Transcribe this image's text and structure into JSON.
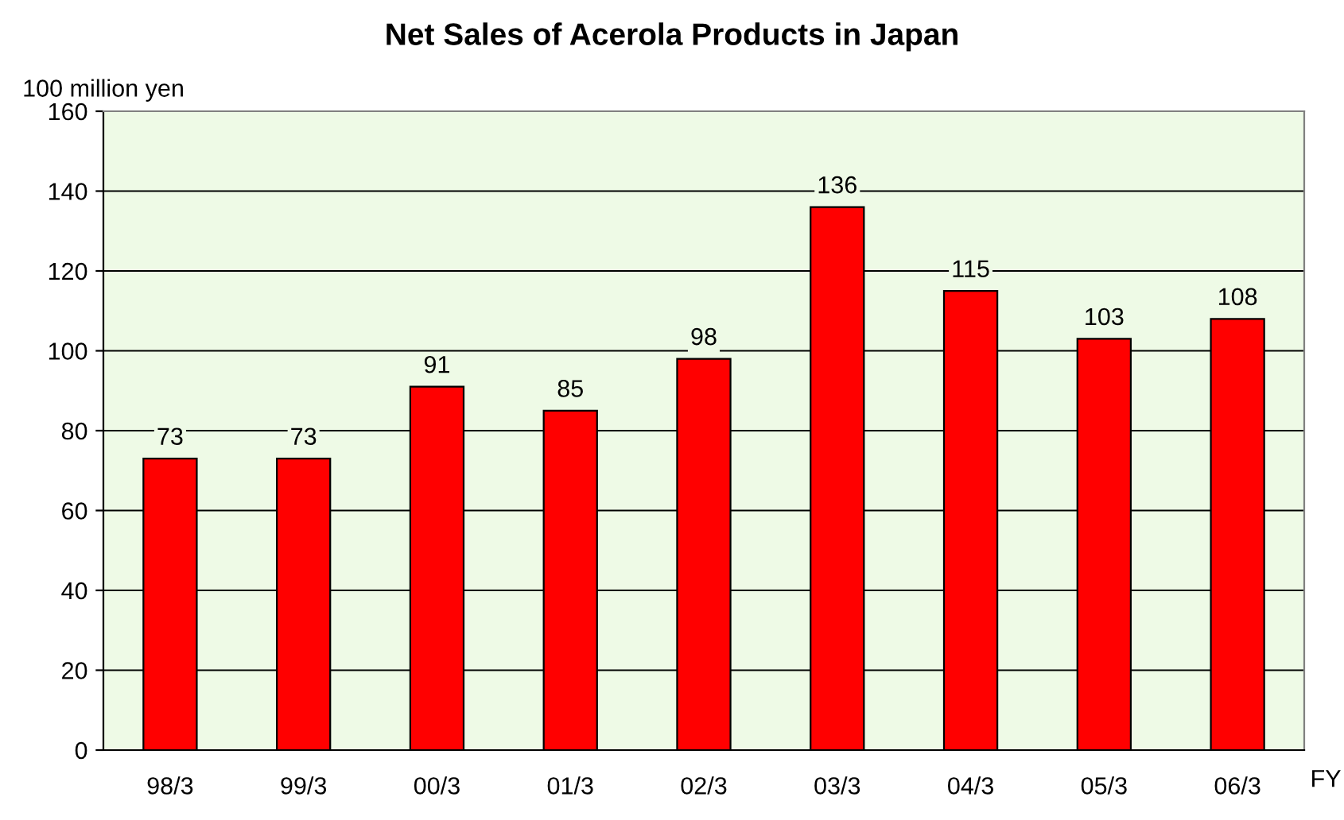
{
  "chart_data": {
    "type": "bar",
    "title": "Net Sales of Acerola Products in Japan",
    "ylabel": "100 million yen",
    "xlabel": "FY",
    "categories": [
      "98/3",
      "99/3",
      "00/3",
      "01/3",
      "02/3",
      "03/3",
      "04/3",
      "05/3",
      "06/3"
    ],
    "values": [
      73,
      73,
      91,
      85,
      98,
      136,
      115,
      103,
      108
    ],
    "color": "#ff0000",
    "ylim": [
      0,
      160
    ],
    "yticks": [
      0,
      20,
      40,
      60,
      80,
      100,
      120,
      140,
      160
    ],
    "grid": "y",
    "data_labels": true
  }
}
